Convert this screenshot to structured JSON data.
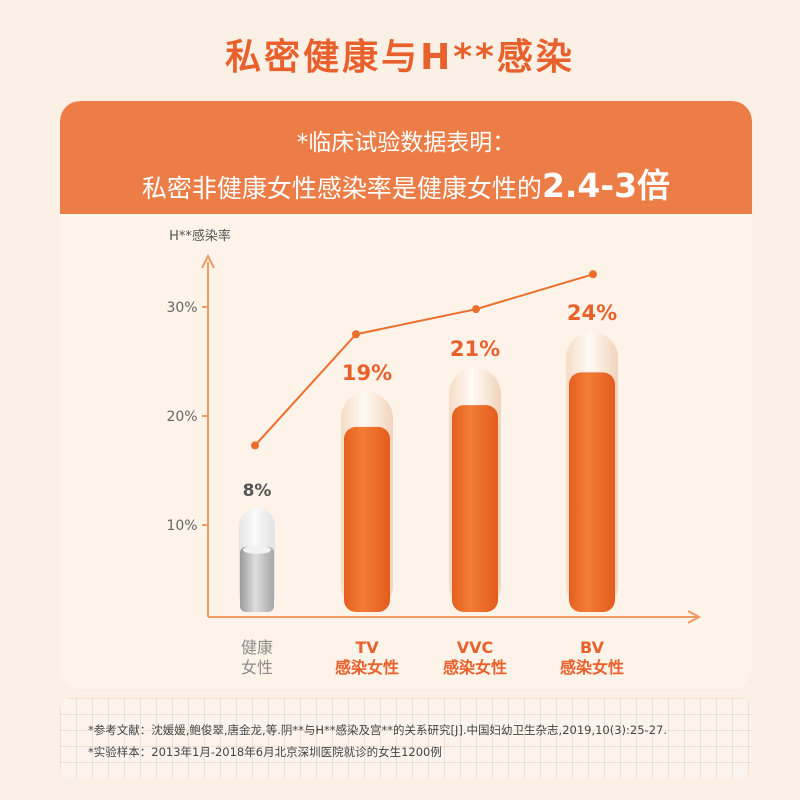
{
  "title": "私密健康与H**感染",
  "header": {
    "line1": "*临床试验数据表明：",
    "line2_prefix": "私密非健康女性感染率是健康女性的",
    "line2_highlight": "2.4-3倍"
  },
  "chart_data": {
    "type": "bar",
    "ylabel": "H**感染率",
    "yticks": [
      "10%",
      "20%",
      "30%"
    ],
    "categories": [
      {
        "line1": "健康",
        "line2": "女性"
      },
      {
        "line1": "TV",
        "line2": "感染女性"
      },
      {
        "line1": "VVC",
        "line2": "感染女性"
      },
      {
        "line1": "BV",
        "line2": "感染女性"
      }
    ],
    "values": [
      8,
      19,
      21,
      24
    ],
    "value_labels": [
      "8%",
      "19%",
      "21%",
      "24%"
    ],
    "trend_line_values": [
      17.3,
      27.5,
      29.8,
      33.0
    ],
    "colors": {
      "accent": "#e8612c",
      "bar": "#ec6e2b",
      "bar_healthy": "#b4b4b4",
      "axis": "#f09a63",
      "category_gray": "#8c8c8c"
    }
  },
  "references": {
    "line1": "*参考文献：沈媛媛,鲍俊翠,唐金龙,等.阴**与H**感染及宫**的关系研究[J].中国妇幼卫生杂志,2019,10(3):25-27.",
    "line2": "*实验样本：2013年1月-2018年6月北京深圳医院就诊的女生1200例"
  }
}
